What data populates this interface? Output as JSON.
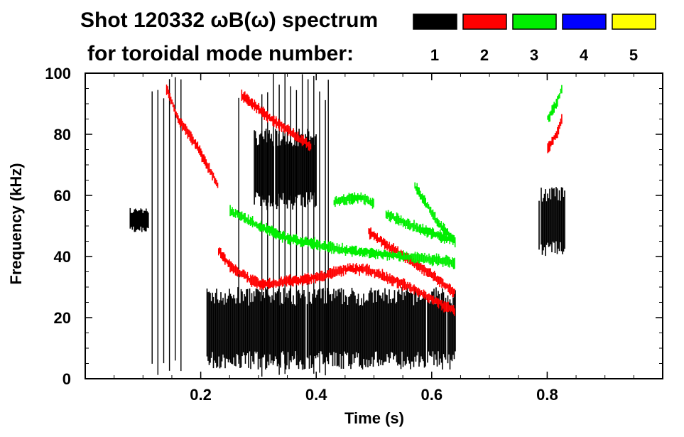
{
  "chart_data": {
    "type": "heatmap",
    "title": "Shot 120332 ωB(ω) spectrum",
    "subtitle": "for toroidal mode number:",
    "xlabel": "Time (s)",
    "ylabel": "Frequency (kHz)",
    "xlim": [
      0.0,
      1.0
    ],
    "ylim": [
      0,
      100
    ],
    "xticks": [
      0.2,
      0.4,
      0.6,
      0.8
    ],
    "xtick_labels": [
      "0.2",
      "0.4",
      "0.6",
      "0.8"
    ],
    "yticks": [
      0,
      20,
      40,
      60,
      80,
      100
    ],
    "ytick_labels": [
      "0",
      "20",
      "40",
      "60",
      "80",
      "100"
    ],
    "grid": false,
    "legend_placement": "top-right",
    "legend": [
      {
        "label": "1",
        "color": "#000000"
      },
      {
        "label": "2",
        "color": "#ff0000"
      },
      {
        "label": "3",
        "color": "#00ee00"
      },
      {
        "label": "4",
        "color": "#0000ff"
      },
      {
        "label": "5",
        "color": "#ffff00"
      }
    ],
    "series": [
      {
        "name": "1",
        "color": "#000000",
        "regions": [
          {
            "t": [
              0.21,
              0.64
            ],
            "f": [
              3,
              30
            ],
            "note": "broadband low-frequency band"
          },
          {
            "t": [
              0.29,
              0.4
            ],
            "f": [
              55,
              82
            ],
            "note": "chirping band"
          },
          {
            "t": [
              0.075,
              0.11
            ],
            "f": [
              48,
              56
            ]
          },
          {
            "t": [
              0.785,
              0.83
            ],
            "f": [
              40,
              63
            ]
          }
        ],
        "vertical_streaks_t": [
          0.115,
          0.125,
          0.135,
          0.145,
          0.155,
          0.165,
          0.265,
          0.305,
          0.315,
          0.325,
          0.335,
          0.345,
          0.355,
          0.365,
          0.375,
          0.385,
          0.395,
          0.405,
          0.415,
          0.42
        ]
      },
      {
        "name": "2",
        "color": "#ff0000",
        "lines": [
          {
            "t": [
              0.23,
              0.25,
              0.28,
              0.3,
              0.32,
              0.35,
              0.4,
              0.45,
              0.48,
              0.51,
              0.55,
              0.6,
              0.64
            ],
            "f": [
              42,
              37,
              33,
              31,
              31,
              32,
              33,
              36,
              36,
              34,
              31,
              26,
              22
            ]
          },
          {
            "t": [
              0.49,
              0.52,
              0.56,
              0.6,
              0.64
            ],
            "f": [
              48,
              44,
              39,
              34,
              28
            ]
          },
          {
            "t": [
              0.27,
              0.3,
              0.33,
              0.36,
              0.39
            ],
            "f": [
              93,
              88,
              84,
              80,
              76
            ]
          },
          {
            "t": [
              0.14,
              0.16,
              0.19,
              0.21,
              0.23
            ],
            "f": [
              95,
              85,
              77,
              70,
              63
            ]
          },
          {
            "t": [
              0.8,
              0.815,
              0.825
            ],
            "f": [
              75,
              80,
              85
            ]
          }
        ]
      },
      {
        "name": "3",
        "color": "#00ee00",
        "lines": [
          {
            "t": [
              0.43,
              0.46,
              0.48,
              0.5
            ],
            "f": [
              58,
              59,
              59,
              57
            ]
          },
          {
            "t": [
              0.52,
              0.55,
              0.58,
              0.61,
              0.64
            ],
            "f": [
              54,
              51,
              49,
              47,
              45
            ]
          },
          {
            "t": [
              0.57,
              0.59,
              0.61,
              0.64
            ],
            "f": [
              63,
              57,
              51,
              45
            ]
          },
          {
            "t": [
              0.25,
              0.3,
              0.35,
              0.4,
              0.45,
              0.5,
              0.55,
              0.6,
              0.64
            ],
            "f": [
              55,
              50,
              46,
              44,
              42,
              41,
              40,
              39,
              38
            ]
          },
          {
            "t": [
              0.8,
              0.815,
              0.825
            ],
            "f": [
              85,
              90,
              95
            ]
          }
        ]
      }
    ]
  }
}
